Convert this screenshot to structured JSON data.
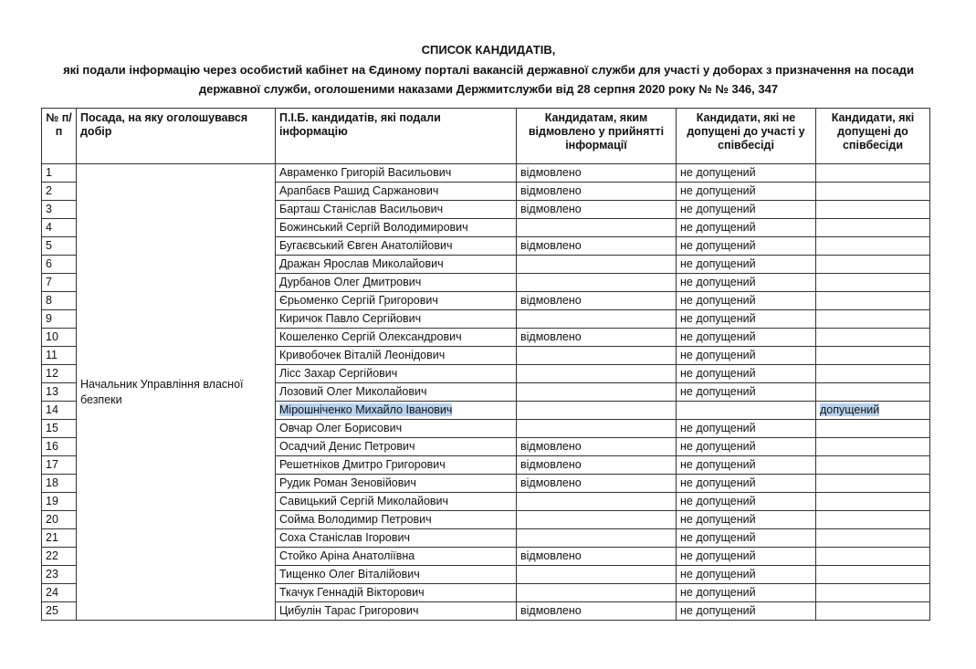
{
  "header": {
    "title": "СПИСОК КАНДИДАТІВ,",
    "subtitle": "які подали інформацію через особистий кабінет на Єдиному порталі вакансій державної служби для участі у доборах з призначення на посади державної служби, оголошеними наказами Держмитслужби від 28 серпня 2020 року № № 346, 347"
  },
  "table": {
    "columns": [
      "№ п/п",
      "Посада, на яку оголошувався добір",
      "П.І.Б. кандидатів, які подали інформацію",
      "Кандидатам, яким відмовлено у прийнятті інформації",
      "Кандидати, які не допущені до участі у співбесіді",
      "Кандидати, які допущені до співбесіди"
    ],
    "position": "Начальник Управління власної безпеки",
    "rows": [
      {
        "n": 1,
        "name": "Авраменко Григорій Васильович",
        "refused": "відмовлено",
        "not_admitted": "не допущений"
      },
      {
        "n": 2,
        "name": "Арапбаєв Рашид Саржанович",
        "refused": "відмовлено",
        "not_admitted": "не допущений"
      },
      {
        "n": 3,
        "name": "Барташ Станіслав Васильович",
        "refused": "відмовлено",
        "not_admitted": "не допущений"
      },
      {
        "n": 4,
        "name": "Божинський Сергій Володимирович",
        "not_admitted": "не допущений"
      },
      {
        "n": 5,
        "name": "Бугаєвський Євген Анатолійович",
        "refused": "відмовлено",
        "not_admitted": "не допущений"
      },
      {
        "n": 6,
        "name": "Дражан Ярослав Миколайович",
        "not_admitted": "не допущений"
      },
      {
        "n": 7,
        "name": "Дурбанов Олег Дмитрович",
        "not_admitted": "не допущений"
      },
      {
        "n": 8,
        "name": "Єрьоменко Сергій Григорович",
        "refused": "відмовлено",
        "not_admitted": "не допущений"
      },
      {
        "n": 9,
        "name": "Киричок Павло Сергійович",
        "not_admitted": "не допущений"
      },
      {
        "n": 10,
        "name": "Кошеленко Сергій Олександрович",
        "refused": "відмовлено",
        "not_admitted": "не допущений"
      },
      {
        "n": 11,
        "name": "Кривобочек Віталій Леонідович",
        "not_admitted": "не допущений"
      },
      {
        "n": 12,
        "name": "Лісс Захар Сергійович",
        "not_admitted": "не допущений"
      },
      {
        "n": 13,
        "name": "Лозовий Олег Миколайович",
        "not_admitted": "не допущений"
      },
      {
        "n": 14,
        "name": "Мірошніченко Михайло Іванович",
        "admitted": "допущений"
      },
      {
        "n": 15,
        "name": "Овчар Олег Борисович",
        "not_admitted": "не допущений"
      },
      {
        "n": 16,
        "name": "Осадчий Денис Петрович",
        "refused": "відмовлено",
        "not_admitted": "не допущений"
      },
      {
        "n": 17,
        "name": "Решетніков Дмитро Григорович",
        "refused": "відмовлено",
        "not_admitted": "не допущений"
      },
      {
        "n": 18,
        "name": "Рудик Роман Зеновійович",
        "refused": "відмовлено",
        "not_admitted": "не допущений"
      },
      {
        "n": 19,
        "name": "Савицький Сергій Миколайович",
        "not_admitted": "не допущений"
      },
      {
        "n": 20,
        "name": "Сойма Володимир Петрович",
        "not_admitted": "не допущений"
      },
      {
        "n": 21,
        "name": "Соха Станіслав Ігорович",
        "not_admitted": "не допущений"
      },
      {
        "n": 22,
        "name": "Стойко Аріна Анатоліївна",
        "refused": "відмовлено",
        "not_admitted": "не допущений"
      },
      {
        "n": 23,
        "name": "Тищенко Олег Віталійович",
        "not_admitted": "не допущений"
      },
      {
        "n": 24,
        "name": "Ткачук Геннадій Вікторович",
        "not_admitted": "не допущений"
      },
      {
        "n": 25,
        "name": "Цибулін Тарас Григорович",
        "refused": "відмовлено",
        "not_admitted": "не допущений"
      }
    ]
  }
}
